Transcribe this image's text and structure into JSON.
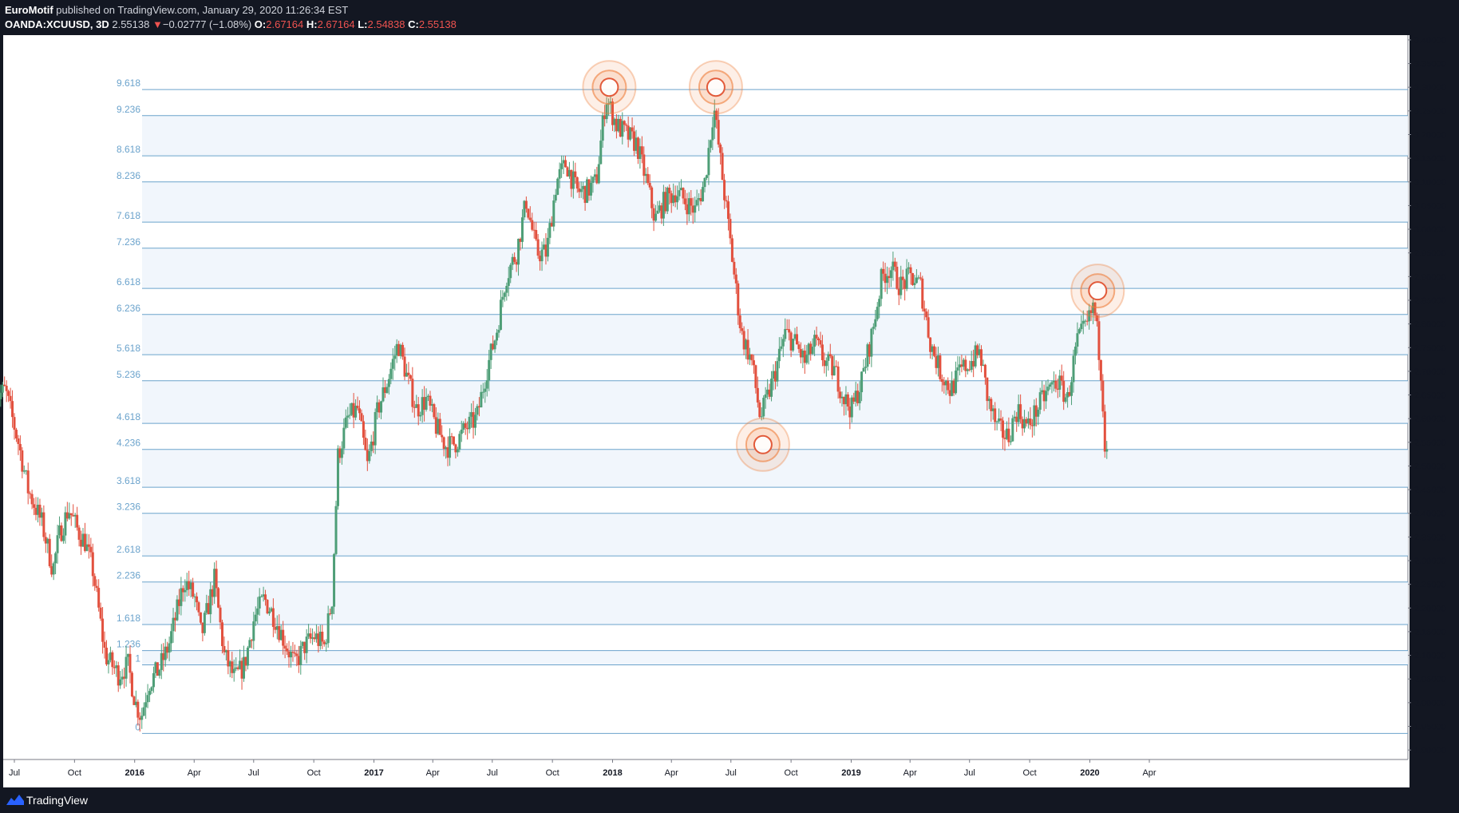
{
  "header": {
    "author": "EuroMotif",
    "published": " published on TradingView.com, January 29, 2020 11:26:34 EST",
    "symbol": "OANDA:XCUUSD, 3D",
    "last": "2.55138",
    "change": "−0.02777 (−1.08%)",
    "o_label": "O:",
    "o_value": "2.67164",
    "h_label": "H:",
    "h_value": "2.67164",
    "l_label": "L:",
    "l_value": "2.54838",
    "c_label": "C:",
    "c_value": "2.55138"
  },
  "footer": {
    "brand": "TradingView",
    "logo_icon": "tradingview-logo-icon"
  },
  "colors": {
    "up": "#4e9e77",
    "down": "#e2503e",
    "fib_line": "#6ba3cc",
    "fib_label": "#6ba3cc",
    "band": "#f1f6fc",
    "marker": "#ef7d3a"
  },
  "chart_data": {
    "type": "candlestick",
    "symbol": "OANDA:XCUUSD",
    "interval": "3D",
    "ylim": [
      1.88,
      3.41
    ],
    "y_ticks": [
      "1.90000",
      "1.95000",
      "2.00000",
      "2.05000",
      "2.10000",
      "2.15000",
      "2.20000",
      "2.25000",
      "2.30000",
      "2.35000",
      "2.40000",
      "2.45000",
      "2.50000",
      "2.55000",
      "2.60000",
      "2.65000",
      "2.70000",
      "2.75000",
      "2.80000",
      "2.85000",
      "2.90000",
      "2.95000",
      "3.00000",
      "3.05000",
      "3.10000",
      "3.15000",
      "3.20000",
      "3.25000",
      "3.30000",
      "3.35000",
      "3.40000"
    ],
    "x_ticks": [
      {
        "label": "Jul",
        "date": "2015-07-01",
        "bold": false
      },
      {
        "label": "Oct",
        "date": "2015-10-01",
        "bold": false
      },
      {
        "label": "2016",
        "date": "2016-01-01",
        "bold": true
      },
      {
        "label": "Apr",
        "date": "2016-04-01",
        "bold": false
      },
      {
        "label": "Jul",
        "date": "2016-07-01",
        "bold": false
      },
      {
        "label": "Oct",
        "date": "2016-10-01",
        "bold": false
      },
      {
        "label": "2017",
        "date": "2017-01-01",
        "bold": true
      },
      {
        "label": "Apr",
        "date": "2017-04-01",
        "bold": false
      },
      {
        "label": "Jul",
        "date": "2017-07-01",
        "bold": false
      },
      {
        "label": "Oct",
        "date": "2017-10-01",
        "bold": false
      },
      {
        "label": "2018",
        "date": "2018-01-01",
        "bold": true
      },
      {
        "label": "Apr",
        "date": "2018-04-01",
        "bold": false
      },
      {
        "label": "Jul",
        "date": "2018-07-01",
        "bold": false
      },
      {
        "label": "Oct",
        "date": "2018-10-01",
        "bold": false
      },
      {
        "label": "2019",
        "date": "2019-01-01",
        "bold": true
      },
      {
        "label": "Apr",
        "date": "2019-04-01",
        "bold": false
      },
      {
        "label": "Jul",
        "date": "2019-07-01",
        "bold": false
      },
      {
        "label": "Oct",
        "date": "2019-10-01",
        "bold": false
      },
      {
        "label": "2020",
        "date": "2020-01-01",
        "bold": true
      },
      {
        "label": "Apr",
        "date": "2020-04-01",
        "bold": false
      }
    ],
    "fib_levels": [
      {
        "label": "0",
        "price": 1.935
      },
      {
        "label": "1",
        "price": 2.08
      },
      {
        "label": "1.236",
        "price": 2.11
      },
      {
        "label": "1.618",
        "price": 2.165
      },
      {
        "label": "2.236",
        "price": 2.255
      },
      {
        "label": "2.618",
        "price": 2.31
      },
      {
        "label": "3.236",
        "price": 2.4
      },
      {
        "label": "3.618",
        "price": 2.455
      },
      {
        "label": "4.236",
        "price": 2.535
      },
      {
        "label": "4.618",
        "price": 2.59
      },
      {
        "label": "5.236",
        "price": 2.68
      },
      {
        "label": "5.618",
        "price": 2.735
      },
      {
        "label": "6.236",
        "price": 2.82
      },
      {
        "label": "6.618",
        "price": 2.875
      },
      {
        "label": "7.236",
        "price": 2.96
      },
      {
        "label": "7.618",
        "price": 3.015
      },
      {
        "label": "8.236",
        "price": 3.1
      },
      {
        "label": "8.618",
        "price": 3.155
      },
      {
        "label": "9.236",
        "price": 3.24
      },
      {
        "label": "9.618",
        "price": 3.295
      }
    ],
    "markers": [
      {
        "date": "2017-12-27",
        "price": 3.3
      },
      {
        "date": "2018-06-08",
        "price": 3.3
      },
      {
        "date": "2018-08-19",
        "price": 2.545
      },
      {
        "date": "2020-01-13",
        "price": 2.87
      }
    ],
    "price_path": [
      [
        "2015-06-01",
        2.64
      ],
      [
        "2015-06-20",
        2.66
      ],
      [
        "2015-07-10",
        2.55
      ],
      [
        "2015-07-25",
        2.45
      ],
      [
        "2015-08-15",
        2.38
      ],
      [
        "2015-09-01",
        2.28
      ],
      [
        "2015-09-10",
        2.35
      ],
      [
        "2015-09-25",
        2.41
      ],
      [
        "2015-10-10",
        2.36
      ],
      [
        "2015-10-20",
        2.34
      ],
      [
        "2015-11-01",
        2.28
      ],
      [
        "2015-11-20",
        2.1
      ],
      [
        "2015-12-10",
        2.06
      ],
      [
        "2015-12-25",
        2.08
      ],
      [
        "2016-01-05",
        2.0
      ],
      [
        "2016-01-14",
        1.97
      ],
      [
        "2016-01-25",
        2.04
      ],
      [
        "2016-02-10",
        2.07
      ],
      [
        "2016-02-25",
        2.12
      ],
      [
        "2016-03-10",
        2.2
      ],
      [
        "2016-03-20",
        2.26
      ],
      [
        "2016-04-05",
        2.22
      ],
      [
        "2016-04-15",
        2.14
      ],
      [
        "2016-04-25",
        2.2
      ],
      [
        "2016-05-05",
        2.26
      ],
      [
        "2016-05-20",
        2.1
      ],
      [
        "2016-06-05",
        2.05
      ],
      [
        "2016-06-20",
        2.08
      ],
      [
        "2016-07-05",
        2.18
      ],
      [
        "2016-07-20",
        2.22
      ],
      [
        "2016-08-05",
        2.18
      ],
      [
        "2016-08-20",
        2.13
      ],
      [
        "2016-09-05",
        2.08
      ],
      [
        "2016-09-20",
        2.12
      ],
      [
        "2016-10-05",
        2.14
      ],
      [
        "2016-10-20",
        2.12
      ],
      [
        "2016-11-01",
        2.22
      ],
      [
        "2016-11-10",
        2.52
      ],
      [
        "2016-11-25",
        2.6
      ],
      [
        "2016-12-10",
        2.62
      ],
      [
        "2016-12-25",
        2.5
      ],
      [
        "2017-01-10",
        2.62
      ],
      [
        "2017-01-25",
        2.68
      ],
      [
        "2017-02-10",
        2.76
      ],
      [
        "2017-02-25",
        2.68
      ],
      [
        "2017-03-10",
        2.62
      ],
      [
        "2017-03-25",
        2.64
      ],
      [
        "2017-04-10",
        2.58
      ],
      [
        "2017-04-25",
        2.54
      ],
      [
        "2017-05-10",
        2.55
      ],
      [
        "2017-05-25",
        2.58
      ],
      [
        "2017-06-10",
        2.6
      ],
      [
        "2017-06-25",
        2.7
      ],
      [
        "2017-07-10",
        2.78
      ],
      [
        "2017-07-25",
        2.9
      ],
      [
        "2017-08-10",
        2.95
      ],
      [
        "2017-08-25",
        3.06
      ],
      [
        "2017-09-10",
        2.95
      ],
      [
        "2017-09-25",
        2.95
      ],
      [
        "2017-10-10",
        3.1
      ],
      [
        "2017-10-25",
        3.14
      ],
      [
        "2017-11-10",
        3.08
      ],
      [
        "2017-11-25",
        3.08
      ],
      [
        "2017-12-10",
        3.1
      ],
      [
        "2017-12-25",
        3.28
      ],
      [
        "2018-01-10",
        3.22
      ],
      [
        "2018-01-25",
        3.2
      ],
      [
        "2018-02-10",
        3.18
      ],
      [
        "2018-02-25",
        3.1
      ],
      [
        "2018-03-10",
        3.02
      ],
      [
        "2018-03-25",
        3.06
      ],
      [
        "2018-04-10",
        3.08
      ],
      [
        "2018-04-25",
        3.06
      ],
      [
        "2018-05-10",
        3.04
      ],
      [
        "2018-05-25",
        3.1
      ],
      [
        "2018-06-08",
        3.26
      ],
      [
        "2018-06-20",
        3.12
      ],
      [
        "2018-07-05",
        2.95
      ],
      [
        "2018-07-20",
        2.78
      ],
      [
        "2018-08-05",
        2.72
      ],
      [
        "2018-08-18",
        2.6
      ],
      [
        "2018-08-28",
        2.64
      ],
      [
        "2018-09-10",
        2.7
      ],
      [
        "2018-09-25",
        2.78
      ],
      [
        "2018-10-10",
        2.76
      ],
      [
        "2018-10-25",
        2.72
      ],
      [
        "2018-11-10",
        2.76
      ],
      [
        "2018-11-25",
        2.72
      ],
      [
        "2018-12-10",
        2.7
      ],
      [
        "2018-12-25",
        2.64
      ],
      [
        "2019-01-05",
        2.62
      ],
      [
        "2019-01-20",
        2.68
      ],
      [
        "2019-02-05",
        2.78
      ],
      [
        "2019-02-20",
        2.9
      ],
      [
        "2019-03-05",
        2.92
      ],
      [
        "2019-03-20",
        2.88
      ],
      [
        "2019-04-05",
        2.9
      ],
      [
        "2019-04-20",
        2.88
      ],
      [
        "2019-05-05",
        2.76
      ],
      [
        "2019-05-20",
        2.7
      ],
      [
        "2019-06-05",
        2.66
      ],
      [
        "2019-06-20",
        2.7
      ],
      [
        "2019-07-05",
        2.72
      ],
      [
        "2019-07-20",
        2.74
      ],
      [
        "2019-08-01",
        2.64
      ],
      [
        "2019-08-15",
        2.58
      ],
      [
        "2019-09-01",
        2.56
      ],
      [
        "2019-09-15",
        2.62
      ],
      [
        "2019-10-01",
        2.58
      ],
      [
        "2019-10-15",
        2.62
      ],
      [
        "2019-11-01",
        2.66
      ],
      [
        "2019-11-15",
        2.68
      ],
      [
        "2019-12-01",
        2.64
      ],
      [
        "2019-12-15",
        2.76
      ],
      [
        "2020-01-01",
        2.8
      ],
      [
        "2020-01-10",
        2.84
      ],
      [
        "2020-01-17",
        2.76
      ],
      [
        "2020-01-23",
        2.67
      ],
      [
        "2020-01-27",
        2.55
      ]
    ]
  }
}
